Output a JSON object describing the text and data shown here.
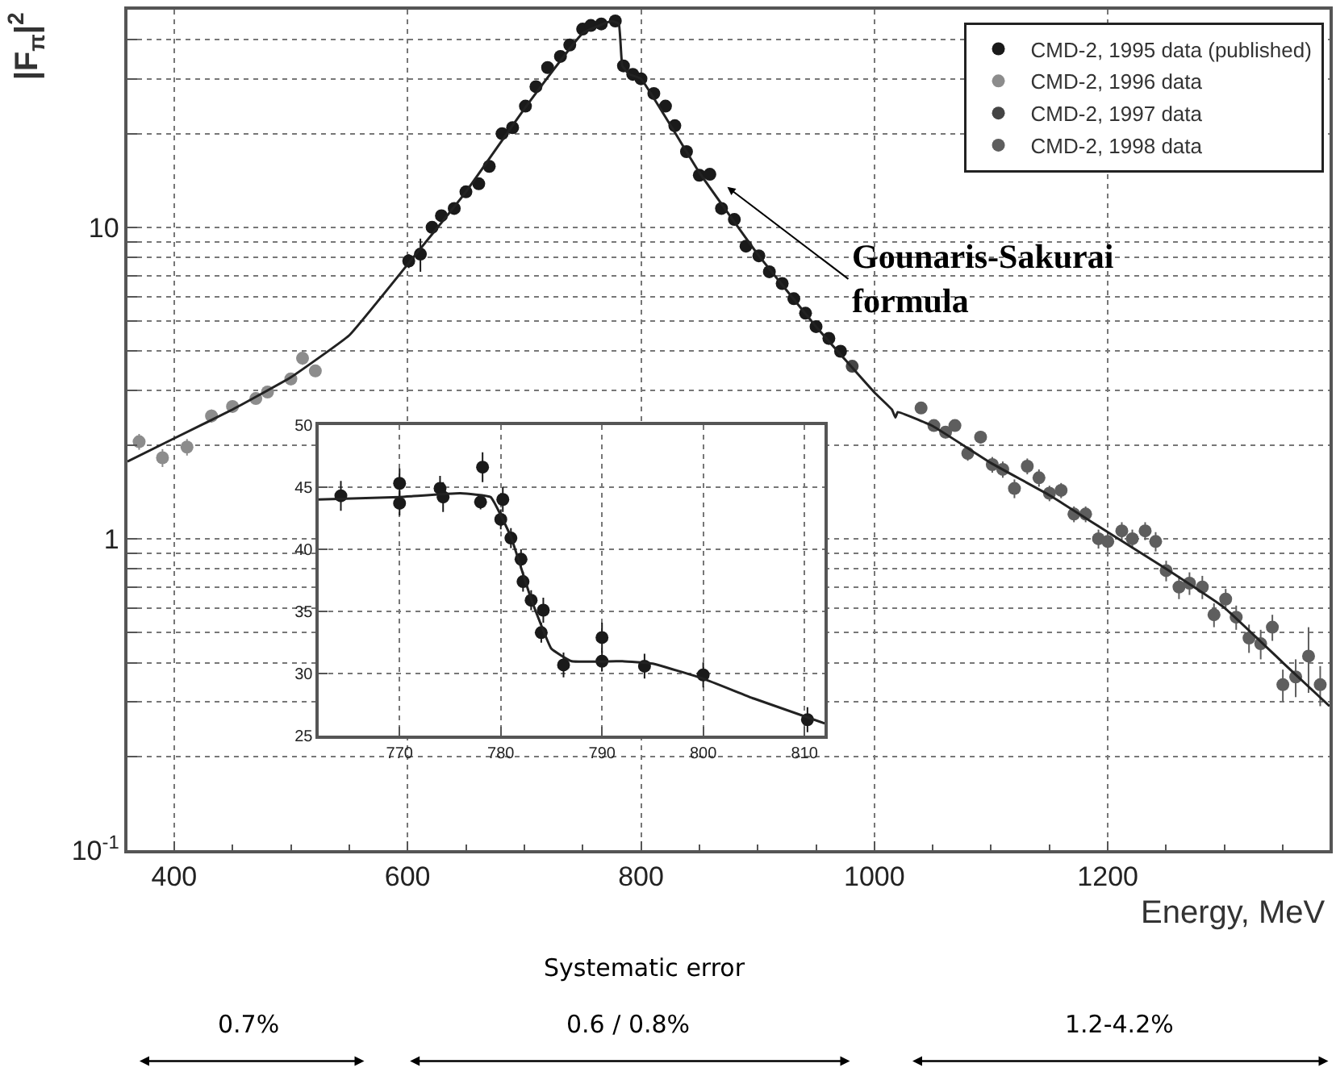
{
  "chart_data": [
    {
      "type": "scatter",
      "xlabel": "Energy, MeV",
      "ylabel": "|F$_{π}$|$^{2}$",
      "log": "y",
      "xlim": [
        360,
        1390
      ],
      "ylim": [
        0.1,
        50
      ],
      "xticks": [
        400,
        {
          "value": 450,
          "label": null
        },
        {
          "value": 500,
          "label": null
        },
        {
          "value": 550,
          "label": null
        },
        600,
        {
          "value": 650,
          "label": null
        },
        {
          "value": 700,
          "label": null
        },
        {
          "value": 750,
          "label": null
        },
        800,
        {
          "value": 850,
          "label": null
        },
        {
          "value": 900,
          "label": null
        },
        {
          "value": 950,
          "label": null
        },
        1000,
        {
          "value": 1050,
          "label": null
        },
        {
          "value": 1100,
          "label": null
        },
        {
          "value": 1150,
          "label": null
        },
        1200,
        {
          "value": 1250,
          "label": null
        },
        {
          "value": 1300,
          "label": null
        },
        {
          "value": 1350,
          "label": null
        }
      ],
      "yticks": [
        {
          "value": 0.1,
          "label": "10$^{-1}$"
        },
        {
          "value": 0.2,
          "label": null
        },
        {
          "value": 0.3,
          "label": null
        },
        {
          "value": 0.4,
          "label": null
        },
        {
          "value": 0.5,
          "label": null
        },
        {
          "value": 0.6,
          "label": null
        },
        {
          "value": 0.7,
          "label": null
        },
        {
          "value": 0.8,
          "label": null
        },
        {
          "value": 0.9,
          "label": null
        },
        1,
        {
          "value": 2,
          "label": null
        },
        {
          "value": 3,
          "label": null
        },
        {
          "value": 4,
          "label": null
        },
        {
          "value": 5,
          "label": null
        },
        {
          "value": 6,
          "label": null
        },
        {
          "value": 7,
          "label": null
        },
        {
          "value": 8,
          "label": null
        },
        {
          "value": 9,
          "label": null
        },
        10,
        {
          "value": 20,
          "label": null
        },
        {
          "value": 30,
          "label": null
        },
        {
          "value": 40,
          "label": null
        }
      ],
      "grid": true,
      "legend": "top right",
      "marker": "circle",
      "series": [
        {
          "name": "CMD-2, 1995 data (published)",
          "color": "#1a1a1a",
          "x": [
            601,
            611,
            621,
            629,
            640,
            650,
            661,
            670,
            681,
            690,
            701,
            710,
            720,
            731,
            739,
            750,
            757,
            766,
            778,
            785,
            793,
            800,
            811,
            821,
            829,
            839,
            850,
            859,
            869,
            880,
            890,
            901,
            910,
            921,
            931,
            941,
            950,
            961,
            971
          ],
          "values": [
            7.8,
            8.2,
            10,
            10.9,
            11.5,
            13.0,
            13.8,
            15.7,
            20.0,
            20.9,
            24.5,
            28.3,
            32.6,
            35.4,
            38.5,
            43.3,
            44.5,
            45,
            46,
            33,
            31,
            30,
            26.9,
            24.5,
            21.2,
            17.5,
            14.7,
            14.8,
            11.5,
            10.6,
            8.7,
            8.1,
            7.2,
            6.6,
            5.9,
            5.3,
            4.8,
            4.4,
            4.0
          ],
          "errors": [
            0.4,
            1.0,
            null,
            null,
            null,
            null,
            null,
            null,
            null,
            null,
            null,
            null,
            null,
            null,
            null,
            null,
            null,
            null,
            null,
            null,
            null,
            null,
            null,
            null,
            null,
            null,
            0.5,
            0.5,
            0.4,
            0.4,
            0.3,
            0.3,
            0.3,
            0.25,
            0.2,
            0.2,
            0.2,
            0.2,
            0.15
          ]
        },
        {
          "name": "CMD-2, 1996 data",
          "color": "#8c8c8c",
          "x": [
            370,
            390,
            411,
            432,
            450,
            470,
            480,
            500,
            510,
            521
          ],
          "values": [
            2.05,
            1.82,
            1.97,
            2.48,
            2.66,
            2.82,
            2.96,
            3.26,
            3.8,
            3.46
          ],
          "errors": [
            0.12,
            0.12,
            0.12,
            0.12,
            0.12,
            0.12,
            0.12,
            0.15,
            0.18,
            0.15
          ]
        },
        {
          "name": "CMD-2, 1997 data",
          "color": "#444444",
          "x": [
            981
          ],
          "values": [
            3.58
          ],
          "errors": [
            0.15
          ]
        },
        {
          "name": "CMD-2, 1998 data",
          "color": "#5e5e5e",
          "x": [
            1040,
            1051,
            1061,
            1069,
            1080,
            1091,
            1101,
            1110,
            1120,
            1131,
            1141,
            1150,
            1160,
            1171,
            1181,
            1192,
            1200,
            1212,
            1221,
            1232,
            1241,
            1250,
            1261,
            1270,
            1281,
            1291,
            1301,
            1310,
            1321,
            1331,
            1341,
            1350,
            1361,
            1372,
            1382
          ],
          "values": [
            2.63,
            2.31,
            2.2,
            2.31,
            1.88,
            2.12,
            1.73,
            1.67,
            1.45,
            1.71,
            1.57,
            1.4,
            1.43,
            1.2,
            1.2,
            1.0,
            0.98,
            1.06,
            1.0,
            1.06,
            0.98,
            0.79,
            0.7,
            0.72,
            0.7,
            0.57,
            0.64,
            0.56,
            0.48,
            0.46,
            0.52,
            0.34,
            0.36,
            0.42,
            0.34
          ],
          "errors": [
            0.1,
            0.1,
            0.1,
            0.1,
            0.1,
            0.1,
            0.1,
            0.1,
            0.1,
            0.1,
            0.1,
            0.08,
            0.08,
            0.07,
            0.07,
            0.07,
            0.07,
            0.07,
            0.07,
            0.07,
            0.07,
            0.06,
            0.06,
            0.06,
            0.06,
            0.05,
            0.05,
            0.05,
            0.05,
            0.05,
            0.05,
            0.04,
            0.05,
            0.1,
            0.05
          ]
        },
        {
          "type": "line",
          "marker": "none",
          "color": "#222222",
          "x": [
            360,
            400,
            450,
            500,
            550,
            600,
            650,
            700,
            750,
            775,
            781,
            784,
            790,
            800,
            850,
            900,
            950,
            1000,
            1015,
            1018,
            1020,
            1050,
            1100,
            1150,
            1200,
            1250,
            1300,
            1350,
            1390
          ],
          "values": [
            1.77,
            2.1,
            2.6,
            3.3,
            4.5,
            7.6,
            13,
            24,
            42,
            46,
            45,
            33,
            31,
            30,
            15,
            8.2,
            4.8,
            2.95,
            2.6,
            2.45,
            2.55,
            2.3,
            1.75,
            1.38,
            1.05,
            0.8,
            0.6,
            0.4,
            0.29
          ]
        }
      ],
      "annotations": [
        "Gounaris-Sakurai formula",
        "Systematic error",
        "0.7%",
        "0.6 / 0.8%",
        "1.2-4.2%"
      ]
    },
    {
      "type": "scatter",
      "xlim": [
        762,
        812
      ],
      "ylim": [
        25,
        50
      ],
      "xticks": [
        770,
        780,
        790,
        800,
        810
      ],
      "yticks": [
        25,
        30,
        35,
        40,
        45,
        50
      ],
      "grid": true,
      "marker": "circle",
      "series": [
        {
          "color": "#1a1a1a",
          "x": [
            764.2,
            770,
            770,
            774,
            774.3,
            778,
            778.2,
            780.2,
            780,
            781,
            782,
            782.2,
            783,
            784.2,
            784,
            786.2,
            790,
            790,
            794.2,
            800,
            810.3
          ],
          "values": [
            44.3,
            43.7,
            45.3,
            44.9,
            44.2,
            43.8,
            46.6,
            44.0,
            42.4,
            40.9,
            39.2,
            37.4,
            35.9,
            35.1,
            33.3,
            30.7,
            31.0,
            32.9,
            30.6,
            29.9,
            26.3
          ],
          "errors": [
            1.2,
            1.0,
            1.2,
            1.0,
            1.2,
            0.6,
            1.2,
            1.0,
            0.8,
            0.8,
            0.8,
            0.8,
            0.8,
            1.0,
            0.8,
            1.0,
            0.8,
            1.2,
            1.0,
            1.0,
            1.0
          ]
        },
        {
          "type": "line",
          "marker": "none",
          "color": "#222222",
          "x": [
            762,
            770,
            776,
            779,
            781,
            783,
            785,
            787,
            792,
            795,
            800,
            805,
            812
          ],
          "values": [
            44,
            44.2,
            44.5,
            44.2,
            41,
            36,
            32,
            31,
            31,
            30.8,
            29.6,
            28,
            26
          ]
        }
      ]
    }
  ]
}
